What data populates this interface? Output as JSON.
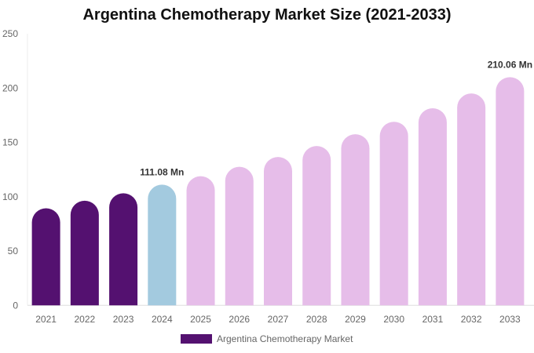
{
  "chart_data": {
    "type": "bar",
    "title": "Argentina Chemotherapy Market Size (2021-2033)",
    "categories": [
      "2021",
      "2022",
      "2023",
      "2024",
      "2025",
      "2026",
      "2027",
      "2028",
      "2029",
      "2030",
      "2031",
      "2032",
      "2033"
    ],
    "series": [
      {
        "name": "Argentina Chemotherapy Market",
        "values": [
          89.4,
          96.3,
          103.2,
          111.08,
          118.9,
          127.5,
          136.6,
          146.7,
          157.5,
          169.0,
          181.4,
          195.0,
          210.06
        ]
      }
    ],
    "bar_colors": [
      "#541170",
      "#541170",
      "#541170",
      "#a3cadf",
      "#e6bde9",
      "#e6bde9",
      "#e6bde9",
      "#e6bde9",
      "#e6bde9",
      "#e6bde9",
      "#e6bde9",
      "#e6bde9",
      "#e6bde9"
    ],
    "data_labels": [
      {
        "index": 3,
        "text": "111.08 Mn"
      },
      {
        "index": 12,
        "text": "210.06 Mn"
      }
    ],
    "ylim": [
      0,
      250
    ],
    "yticks": [
      0,
      50,
      100,
      150,
      200,
      250
    ],
    "grid": false,
    "legend": "bottom"
  }
}
